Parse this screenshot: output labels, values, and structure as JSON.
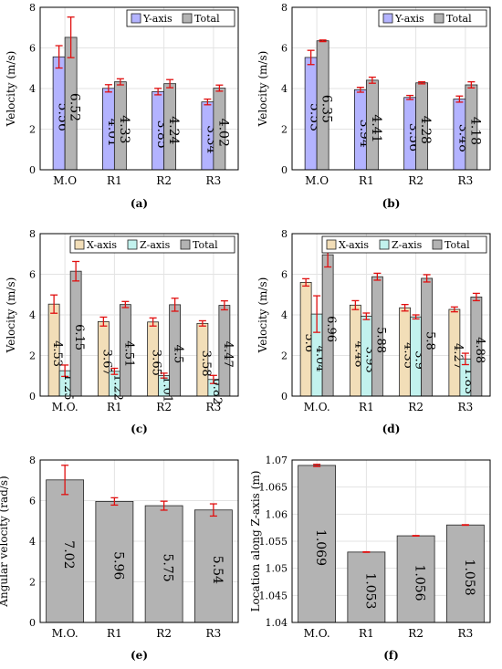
{
  "chart_data": [
    {
      "type": "bar",
      "panel_label": "(a)",
      "categories": [
        "M.O",
        "R1",
        "R2",
        "R3"
      ],
      "ylabel": "Velocity (m/s)",
      "xlabel": "",
      "ylim": [
        0,
        8
      ],
      "yticks": [
        "0",
        "2",
        "4",
        "6",
        "8"
      ],
      "grid": true,
      "legend": "top-right",
      "series": [
        {
          "name": "Y-axis",
          "color": "#b3b3ff",
          "values": [
            5.56,
            4.01,
            3.85,
            3.34
          ],
          "errors": [
            0.55,
            0.18,
            0.16,
            0.14
          ],
          "labels": [
            "5.56",
            "4.01",
            "3.85",
            "3.34"
          ]
        },
        {
          "name": "Total",
          "color": "#b3b3b3",
          "values": [
            6.52,
            4.33,
            4.24,
            4.02
          ],
          "errors": [
            1.0,
            0.15,
            0.2,
            0.15
          ],
          "labels": [
            "6.52",
            "4.33",
            "4.24",
            "4.02"
          ]
        }
      ]
    },
    {
      "type": "bar",
      "panel_label": "(b)",
      "categories": [
        "M.O",
        "R1",
        "R2",
        "R3"
      ],
      "ylabel": "Velocity (m/s)",
      "xlabel": "",
      "ylim": [
        0,
        8
      ],
      "yticks": [
        "0",
        "2",
        "4",
        "6",
        "8"
      ],
      "grid": true,
      "legend": "top-right",
      "series": [
        {
          "name": "Y-axis",
          "color": "#b3b3ff",
          "values": [
            5.53,
            3.94,
            3.56,
            3.48
          ],
          "errors": [
            0.35,
            0.12,
            0.1,
            0.15
          ],
          "labels": [
            "5.53",
            "3.94",
            "3.56",
            "3.48"
          ]
        },
        {
          "name": "Total",
          "color": "#b3b3b3",
          "values": [
            6.35,
            4.41,
            4.28,
            4.18
          ],
          "errors": [
            0.04,
            0.15,
            0.05,
            0.15
          ],
          "labels": [
            "6.35",
            "4.41",
            "4.28",
            "4.18"
          ]
        }
      ]
    },
    {
      "type": "bar",
      "panel_label": "(c)",
      "categories": [
        "M.O.",
        "R1",
        "R2",
        "R3"
      ],
      "ylabel": "Velocity (m/s)",
      "xlabel": "",
      "ylim": [
        0,
        8
      ],
      "yticks": [
        "0",
        "2",
        "4",
        "6",
        "8"
      ],
      "grid": true,
      "legend": "top",
      "series": [
        {
          "name": "X-axis",
          "color": "#f2deb8",
          "values": [
            4.53,
            3.67,
            3.65,
            3.58
          ],
          "errors": [
            0.45,
            0.22,
            0.2,
            0.13
          ],
          "labels": [
            "4.53",
            "3.67",
            "3.65",
            "3.58"
          ]
        },
        {
          "name": "Z-axis",
          "color": "#c2f2ee",
          "values": [
            1.25,
            1.22,
            1.01,
            0.82
          ],
          "errors": [
            0.28,
            0.15,
            0.12,
            0.2
          ],
          "labels": [
            "1.25",
            "1.22",
            "1.01",
            "0.82"
          ]
        },
        {
          "name": "Total",
          "color": "#b3b3b3",
          "values": [
            6.15,
            4.51,
            4.5,
            4.47
          ],
          "errors": [
            0.48,
            0.15,
            0.32,
            0.22
          ],
          "labels": [
            "6.15",
            "4.51",
            "4.5",
            "4.47"
          ]
        }
      ]
    },
    {
      "type": "bar",
      "panel_label": "(d)",
      "categories": [
        "M.O.",
        "R1",
        "R2",
        "R3"
      ],
      "ylabel": "Velocity (m/s)",
      "xlabel": "",
      "ylim": [
        0,
        8
      ],
      "yticks": [
        "0",
        "2",
        "4",
        "6",
        "8"
      ],
      "grid": true,
      "legend": "top",
      "series": [
        {
          "name": "X-axis",
          "color": "#f2deb8",
          "values": [
            5.6,
            4.48,
            4.35,
            4.27
          ],
          "errors": [
            0.18,
            0.22,
            0.16,
            0.12
          ],
          "labels": [
            "5.6",
            "4.48",
            "4.35",
            "4.27"
          ]
        },
        {
          "name": "Z-axis",
          "color": "#c2f2ee",
          "values": [
            4.04,
            3.93,
            3.9,
            1.83
          ],
          "errors": [
            0.9,
            0.16,
            0.1,
            0.28
          ],
          "labels": [
            "4.04",
            "3.93",
            "3.9",
            "1.83"
          ]
        },
        {
          "name": "Total",
          "color": "#b3b3b3",
          "values": [
            6.96,
            5.88,
            5.8,
            4.88
          ],
          "errors": [
            0.6,
            0.17,
            0.18,
            0.18
          ],
          "labels": [
            "6.96",
            "5.88",
            "5.8",
            "4.88"
          ]
        }
      ]
    },
    {
      "type": "bar",
      "panel_label": "(e)",
      "categories": [
        "M.O.",
        "R1",
        "R2",
        "R3"
      ],
      "ylabel": "Angular velocity (rad/s)",
      "xlabel": "",
      "ylim": [
        0,
        8
      ],
      "yticks": [
        "0",
        "2",
        "4",
        "6",
        "8"
      ],
      "grid": true,
      "legend": "none",
      "series": [
        {
          "color": "#b3b3b3",
          "values": [
            7.02,
            5.96,
            5.75,
            5.54
          ],
          "errors": [
            0.72,
            0.18,
            0.22,
            0.3
          ],
          "labels": [
            "7.02",
            "5.96",
            "5.75",
            "5.54"
          ]
        }
      ]
    },
    {
      "type": "bar",
      "panel_label": "(f)",
      "categories": [
        "M.O.",
        "R1",
        "R2",
        "R3"
      ],
      "ylabel": "Location along Z-axis (m)",
      "xlabel": "",
      "ylim": [
        1.04,
        1.07
      ],
      "yticks": [
        "1.04",
        "1.045",
        "1.05",
        "1.055",
        "1.06",
        "1.065",
        "1.07"
      ],
      "grid": true,
      "legend": "none",
      "series": [
        {
          "color": "#b3b3b3",
          "values": [
            1.069,
            1.053,
            1.056,
            1.058
          ],
          "errors": [
            0.0002,
            5e-05,
            5e-05,
            5e-05
          ],
          "labels": [
            "1.069",
            "1.053",
            "1.056",
            "1.058"
          ]
        }
      ]
    }
  ]
}
